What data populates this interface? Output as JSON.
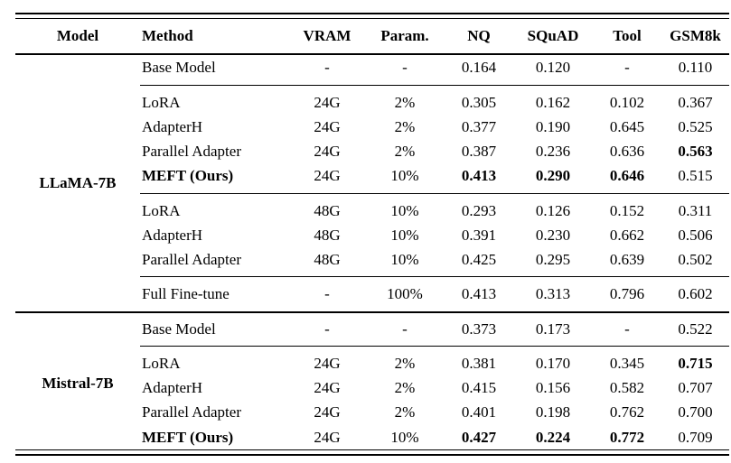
{
  "table": {
    "columns": [
      {
        "key": "model",
        "label": "Model"
      },
      {
        "key": "method",
        "label": "Method"
      },
      {
        "key": "vram",
        "label": "VRAM"
      },
      {
        "key": "param",
        "label": "Param."
      },
      {
        "key": "nq",
        "label": "NQ"
      },
      {
        "key": "squad",
        "label": "SQuAD"
      },
      {
        "key": "tool",
        "label": "Tool"
      },
      {
        "key": "gsm8k",
        "label": "GSM8k"
      }
    ],
    "groups": [
      {
        "model": "LLaMA-7B",
        "blocks": [
          [
            {
              "method": "Base Model",
              "vram": "-",
              "param": "-",
              "nq": "0.164",
              "squad": "0.120",
              "tool": "-",
              "gsm8k": "0.110",
              "bold": []
            }
          ],
          [
            {
              "method": "LoRA",
              "vram": "24G",
              "param": "2%",
              "nq": "0.305",
              "squad": "0.162",
              "tool": "0.102",
              "gsm8k": "0.367",
              "bold": []
            },
            {
              "method": "AdapterH",
              "vram": "24G",
              "param": "2%",
              "nq": "0.377",
              "squad": "0.190",
              "tool": "0.645",
              "gsm8k": "0.525",
              "bold": []
            },
            {
              "method": "Parallel Adapter",
              "vram": "24G",
              "param": "2%",
              "nq": "0.387",
              "squad": "0.236",
              "tool": "0.636",
              "gsm8k": "0.563",
              "bold": [
                "gsm8k"
              ]
            },
            {
              "method": "MEFT (Ours)",
              "vram": "24G",
              "param": "10%",
              "nq": "0.413",
              "squad": "0.290",
              "tool": "0.646",
              "gsm8k": "0.515",
              "bold": [
                "method",
                "nq",
                "squad",
                "tool"
              ]
            }
          ],
          [
            {
              "method": "LoRA",
              "vram": "48G",
              "param": "10%",
              "nq": "0.293",
              "squad": "0.126",
              "tool": "0.152",
              "gsm8k": "0.311",
              "bold": []
            },
            {
              "method": "AdapterH",
              "vram": "48G",
              "param": "10%",
              "nq": "0.391",
              "squad": "0.230",
              "tool": "0.662",
              "gsm8k": "0.506",
              "bold": []
            },
            {
              "method": "Parallel Adapter",
              "vram": "48G",
              "param": "10%",
              "nq": "0.425",
              "squad": "0.295",
              "tool": "0.639",
              "gsm8k": "0.502",
              "bold": []
            }
          ],
          [
            {
              "method": "Full Fine-tune",
              "vram": "-",
              "param": "100%",
              "nq": "0.413",
              "squad": "0.313",
              "tool": "0.796",
              "gsm8k": "0.602",
              "bold": []
            }
          ]
        ]
      },
      {
        "model": "Mistral-7B",
        "blocks": [
          [
            {
              "method": "Base Model",
              "vram": "-",
              "param": "-",
              "nq": "0.373",
              "squad": "0.173",
              "tool": "-",
              "gsm8k": "0.522",
              "bold": []
            }
          ],
          [
            {
              "method": "LoRA",
              "vram": "24G",
              "param": "2%",
              "nq": "0.381",
              "squad": "0.170",
              "tool": "0.345",
              "gsm8k": "0.715",
              "bold": [
                "gsm8k"
              ]
            },
            {
              "method": "AdapterH",
              "vram": "24G",
              "param": "2%",
              "nq": "0.415",
              "squad": "0.156",
              "tool": "0.582",
              "gsm8k": "0.707",
              "bold": []
            },
            {
              "method": "Parallel Adapter",
              "vram": "24G",
              "param": "2%",
              "nq": "0.401",
              "squad": "0.198",
              "tool": "0.762",
              "gsm8k": "0.700",
              "bold": []
            },
            {
              "method": "MEFT (Ours)",
              "vram": "24G",
              "param": "10%",
              "nq": "0.427",
              "squad": "0.224",
              "tool": "0.772",
              "gsm8k": "0.709",
              "bold": [
                "method",
                "nq",
                "squad",
                "tool"
              ]
            }
          ]
        ]
      }
    ]
  }
}
